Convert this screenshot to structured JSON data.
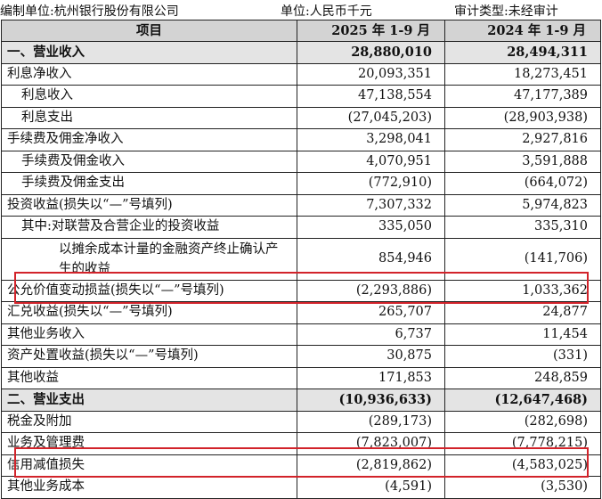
{
  "header": {
    "unit_company": "编制单位:杭州银行股份有限公司",
    "currency": "单位:人民币千元",
    "audit": "审计类型:未经审计"
  },
  "columns": [
    "项目",
    "2025 年 1-9 月",
    "2024 年 1-9 月"
  ],
  "rows": [
    {
      "label": "一、营业收入",
      "v2025": "28,880,010",
      "v2024": "28,494,311"
    },
    {
      "label": "利息净收入",
      "v2025": "20,093,351",
      "v2024": "18,273,451"
    },
    {
      "label": "利息收入",
      "v2025": "47,138,554",
      "v2024": "47,177,389"
    },
    {
      "label": "利息支出",
      "v2025": "(27,045,203)",
      "v2024": "(28,903,938)"
    },
    {
      "label": "手续费及佣金净收入",
      "v2025": "3,298,041",
      "v2024": "2,927,816"
    },
    {
      "label": "手续费及佣金收入",
      "v2025": "4,070,951",
      "v2024": "3,591,888"
    },
    {
      "label": "手续费及佣金支出",
      "v2025": "(772,910)",
      "v2024": "(664,072)"
    },
    {
      "label": "投资收益(损失以“—”号填列)",
      "v2025": "7,307,332",
      "v2024": "5,974,823"
    },
    {
      "label": "其中:对联营及合营企业的投资收益",
      "v2025": "335,050",
      "v2024": "335,310"
    },
    {
      "label": "以摊余成本计量的金融资产终止确认产生的收益",
      "v2025": "854,946",
      "v2024": "(141,706)"
    },
    {
      "label": "公允价值变动损益(损失以“—”号填列)",
      "v2025": "(2,293,886)",
      "v2024": "1,033,362"
    },
    {
      "label": "汇兑收益(损失以“—”号填列)",
      "v2025": "265,707",
      "v2024": "24,877"
    },
    {
      "label": "其他业务收入",
      "v2025": "6,737",
      "v2024": "11,454"
    },
    {
      "label": "资产处置收益(损失以“—”号填列)",
      "v2025": "30,875",
      "v2024": "(331)"
    },
    {
      "label": "其他收益",
      "v2025": "171,853",
      "v2024": "248,859"
    },
    {
      "label": "二、营业支出",
      "v2025": "(10,936,633)",
      "v2024": "(12,647,468)"
    },
    {
      "label": "税金及附加",
      "v2025": "(289,173)",
      "v2024": "(282,698)"
    },
    {
      "label": "业务及管理费",
      "v2025": "(7,823,007)",
      "v2024": "(7,778,215)"
    },
    {
      "label": "信用减值损失",
      "v2025": "(2,819,862)",
      "v2024": "(4,583,025)"
    },
    {
      "label": "其他业务成本",
      "v2025": "(4,591)",
      "v2024": "(3,530)"
    }
  ],
  "highlight_color": "#d2232a"
}
